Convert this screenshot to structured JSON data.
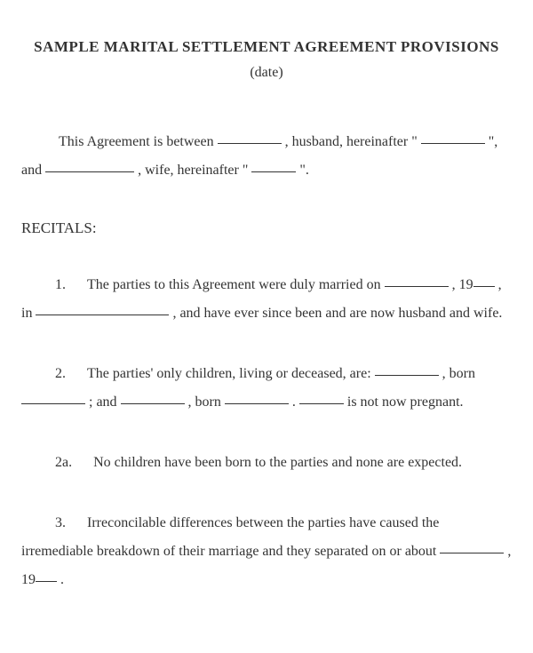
{
  "header": {
    "title": "SAMPLE MARITAL SETTLEMENT AGREEMENT PROVISIONS",
    "date_label": "(date)"
  },
  "intro": {
    "t1": "This Agreement is between ",
    "t2": " , husband, hereinafter \" ",
    "t3": " \", and ",
    "t4": " , wife, hereinafter \" ",
    "t5": " \"."
  },
  "recitals": {
    "heading": "RECITALS:",
    "r1": {
      "num": "1.",
      "a": "The parties to this Agreement were duly married on ",
      "b": " , 19",
      "c": " , in ",
      "d": " , and have ever since been and are now husband and wife."
    },
    "r2": {
      "num": "2.",
      "a": "The parties' only children, living or deceased, are: ",
      "b": " , born ",
      "c": " ; and ",
      "d": " , born ",
      "e": " . ",
      "f": " is not now pregnant."
    },
    "r2a": {
      "num": "2a.",
      "a": "No children have been born to the parties and none are expected."
    },
    "r3": {
      "num": "3.",
      "a": "Irreconcilable differences between the parties have caused the irremediable breakdown of their marriage and they separated on or about ",
      "b": " , 19",
      "c": " ."
    }
  },
  "styling": {
    "font_family": "Times New Roman",
    "title_fontsize": 17,
    "body_fontsize": 16,
    "text_color": "#333333",
    "background_color": "#ffffff",
    "line_height_body": 2.0,
    "blank_underline_color": "#333333"
  }
}
